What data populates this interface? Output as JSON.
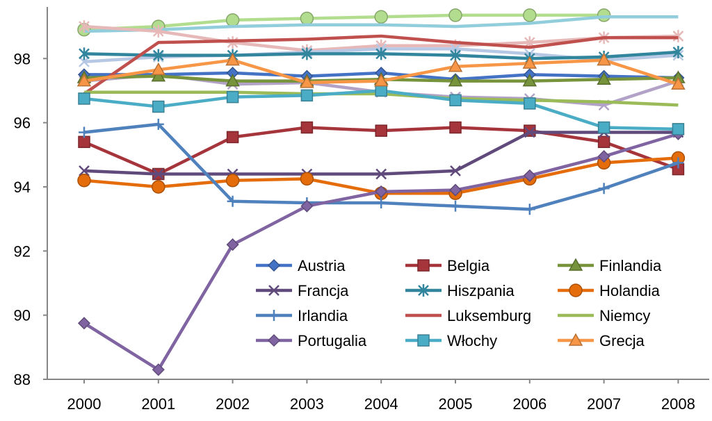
{
  "chart_data": {
    "type": "line",
    "title": "",
    "xlabel": "",
    "ylabel": "",
    "categories": [
      "2000",
      "2001",
      "2002",
      "2003",
      "2004",
      "2005",
      "2006",
      "2007",
      "2008"
    ],
    "ylim": [
      88,
      99.5
    ],
    "yticks": [
      "88",
      "90",
      "92",
      "94",
      "96",
      "98"
    ],
    "grid": false,
    "legend_position": "bottom-right-inside",
    "series": [
      {
        "name": "Austria",
        "color": "#4472C4",
        "marker": "diamond",
        "values": [
          97.5,
          97.5,
          97.55,
          97.45,
          97.55,
          97.35,
          97.5,
          97.45,
          97.4
        ]
      },
      {
        "name": "Belgia",
        "color": "#A5343B",
        "marker": "square",
        "values": [
          95.4,
          94.4,
          95.55,
          95.85,
          95.75,
          95.85,
          95.75,
          95.4,
          94.55
        ]
      },
      {
        "name": "Finlandia",
        "color": "#77933C",
        "marker": "triangle",
        "values": [
          97.4,
          97.45,
          97.3,
          97.3,
          97.35,
          97.3,
          97.3,
          97.35,
          97.4
        ]
      },
      {
        "name": "Francja",
        "color": "#604A7B",
        "marker": "x",
        "values": [
          94.5,
          94.4,
          94.4,
          94.4,
          94.4,
          94.5,
          95.7,
          95.7,
          95.7
        ]
      },
      {
        "name": "Hiszpania",
        "color": "#31859C",
        "marker": "star",
        "values": [
          98.15,
          98.1,
          98.1,
          98.15,
          98.15,
          98.1,
          98.0,
          98.05,
          98.2
        ]
      },
      {
        "name": "Holandia",
        "color": "#E46C0A",
        "marker": "circle",
        "values": [
          94.2,
          94.0,
          94.2,
          94.25,
          93.8,
          93.8,
          94.25,
          94.75,
          94.9
        ]
      },
      {
        "name": "Irlandia",
        "color": "#4F81BD",
        "marker": "plus",
        "values": [
          95.7,
          95.95,
          93.55,
          93.5,
          93.5,
          93.4,
          93.3,
          93.95,
          94.75
        ]
      },
      {
        "name": "Luksemburg",
        "color": "#C0504D",
        "marker": "none",
        "values": [
          96.9,
          98.5,
          98.55,
          98.6,
          98.7,
          98.5,
          98.35,
          98.65,
          98.65
        ]
      },
      {
        "name": "Niemcy",
        "color": "#9BBB59",
        "marker": "none",
        "values": [
          96.95,
          96.95,
          96.95,
          96.9,
          96.9,
          96.75,
          96.7,
          96.65,
          96.55
        ]
      },
      {
        "name": "Portugalia",
        "color": "#8064A2",
        "marker": "diamond",
        "values": [
          89.75,
          88.3,
          92.2,
          93.4,
          93.85,
          93.9,
          94.35,
          94.95,
          95.65
        ]
      },
      {
        "name": "Włochy",
        "color": "#4BACC6",
        "marker": "square",
        "values": [
          96.75,
          96.5,
          96.8,
          96.85,
          97.0,
          96.7,
          96.6,
          95.85,
          95.8
        ]
      },
      {
        "name": "Grecja",
        "color": "#F79646",
        "marker": "triangle",
        "values": [
          97.3,
          97.65,
          97.95,
          97.25,
          97.3,
          97.75,
          97.85,
          97.95,
          97.2
        ]
      },
      {
        "name": "",
        "color": "#B3DD8E",
        "marker": "circle",
        "values": [
          98.9,
          99.0,
          99.2,
          99.25,
          99.3,
          99.35,
          99.35,
          99.35,
          null
        ]
      },
      {
        "name": "",
        "color": "#92CDDC",
        "marker": "none",
        "values": [
          98.85,
          98.9,
          99.0,
          99.05,
          99.05,
          99.0,
          99.1,
          99.3,
          99.3
        ]
      },
      {
        "name": "",
        "color": "#E6B9B8",
        "marker": "star",
        "values": [
          99.0,
          98.85,
          98.5,
          98.25,
          98.4,
          98.4,
          98.5,
          98.65,
          98.7
        ]
      },
      {
        "name": "",
        "color": "#B3A2C7",
        "marker": "x",
        "values": [
          97.3,
          97.5,
          97.2,
          97.25,
          96.95,
          96.8,
          96.75,
          96.55,
          97.3
        ]
      },
      {
        "name": "",
        "color": "#B7C8E4",
        "marker": "x",
        "values": [
          97.9,
          98.05,
          98.1,
          98.2,
          98.3,
          98.3,
          98.15,
          97.95,
          98.1
        ]
      }
    ]
  }
}
